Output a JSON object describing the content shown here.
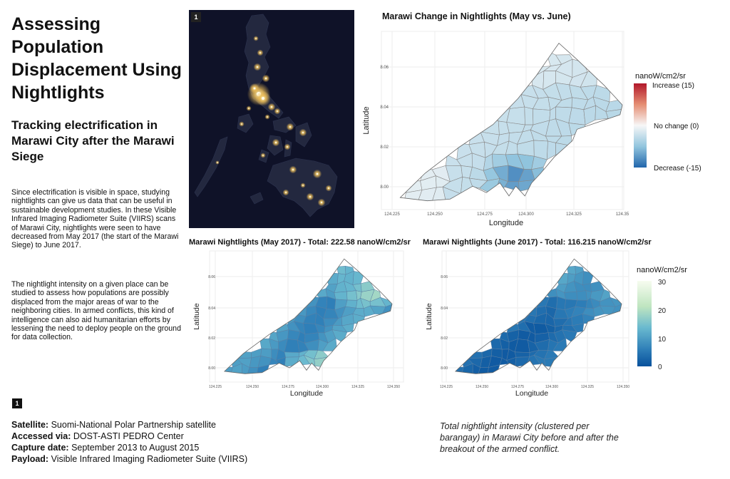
{
  "title": "Assessing Population Displacement Using Nightlights",
  "subtitle": "Tracking electrification in Marawi City after the Marawi Siege",
  "paragraphs": [
    "Since electrification is visible in space, studying nightlights can give us data that can be useful in sustainable development studies. In these Visible Infrared Imaging Radiometer Suite (VIIRS) scans of Marawi City, nightlights were seen to have decreased from May 2017 (the start of the Marawi Siege) to June 2017.",
    "The nightlight intensity on a given place can be studied to assess how populations are possibly displaced from the major areas of war to the neighboring cities. In armed conflicts, this kind of intelligence can also aid  humanitarian efforts by lessening the need to deploy people on the ground for data collection."
  ],
  "badges": {
    "top": "1",
    "bottom": "1"
  },
  "footer": {
    "satellite_label": "Satellite:",
    "satellite": "Suomi-National Polar Partnership satellite",
    "accessed_label": "Accessed via:",
    "accessed": "DOST-ASTI PEDRO Center",
    "capture_label": "Capture date:",
    "capture": "September 2013 to August 2015",
    "payload_label": "Payload:",
    "payload": "Visible Infrared Imaging Radiometer Suite (VIIRS)"
  },
  "caption": "Total nightlight intensity (clustered per barangay) in Marawi City before and after the breakout of the armed conflict.",
  "colors": {
    "increase": "#b2182b",
    "no_change": "#f7f7f7",
    "decrease": "#2166ac",
    "low": "#08519c",
    "high": "#f7fcf0"
  },
  "chart_data": [
    {
      "type": "map",
      "title": "Marawi Change in Nightlights (May vs. June)",
      "xlabel": "Longitude",
      "ylabel": "Latitude",
      "x_ticks": [
        "124.225",
        "124.250",
        "124.275",
        "124.300",
        "124.325",
        "124.35"
      ],
      "y_ticks": [
        "8.06",
        "8.04",
        "8.02",
        "8.00"
      ],
      "legend_title": "nanoW/cm2/sr",
      "legend_labels": [
        "Increase (15)",
        "No change (0)",
        "Decrease (-15)"
      ],
      "range": [
        -15,
        15
      ]
    },
    {
      "type": "map",
      "title": "Marawi Nightlights (May 2017) - Total: 222.58 nanoW/cm2/sr",
      "xlabel": "Longitude",
      "ylabel": "Latitude",
      "x_ticks": [
        "124.225",
        "124.250",
        "124.275",
        "124.300",
        "124.325",
        "124.350"
      ],
      "y_ticks": [
        "8.06",
        "8.04",
        "8.02",
        "8.00"
      ],
      "total": 222.58
    },
    {
      "type": "map",
      "title": "Marawi Nightlights (June 2017) - Total: 116.215 nanoW/cm2/sr",
      "xlabel": "Longitude",
      "ylabel": "Latitude",
      "x_ticks": [
        "124.225",
        "124.250",
        "124.275",
        "124.300",
        "124.325",
        "124.350"
      ],
      "y_ticks": [
        "8.06",
        "8.04",
        "8.02",
        "8.00"
      ],
      "total": 116.215,
      "legend_title": "nanoW/cm2/sr",
      "legend_ticks": [
        "30",
        "20",
        "10",
        "0"
      ],
      "range": [
        0,
        30
      ]
    }
  ]
}
